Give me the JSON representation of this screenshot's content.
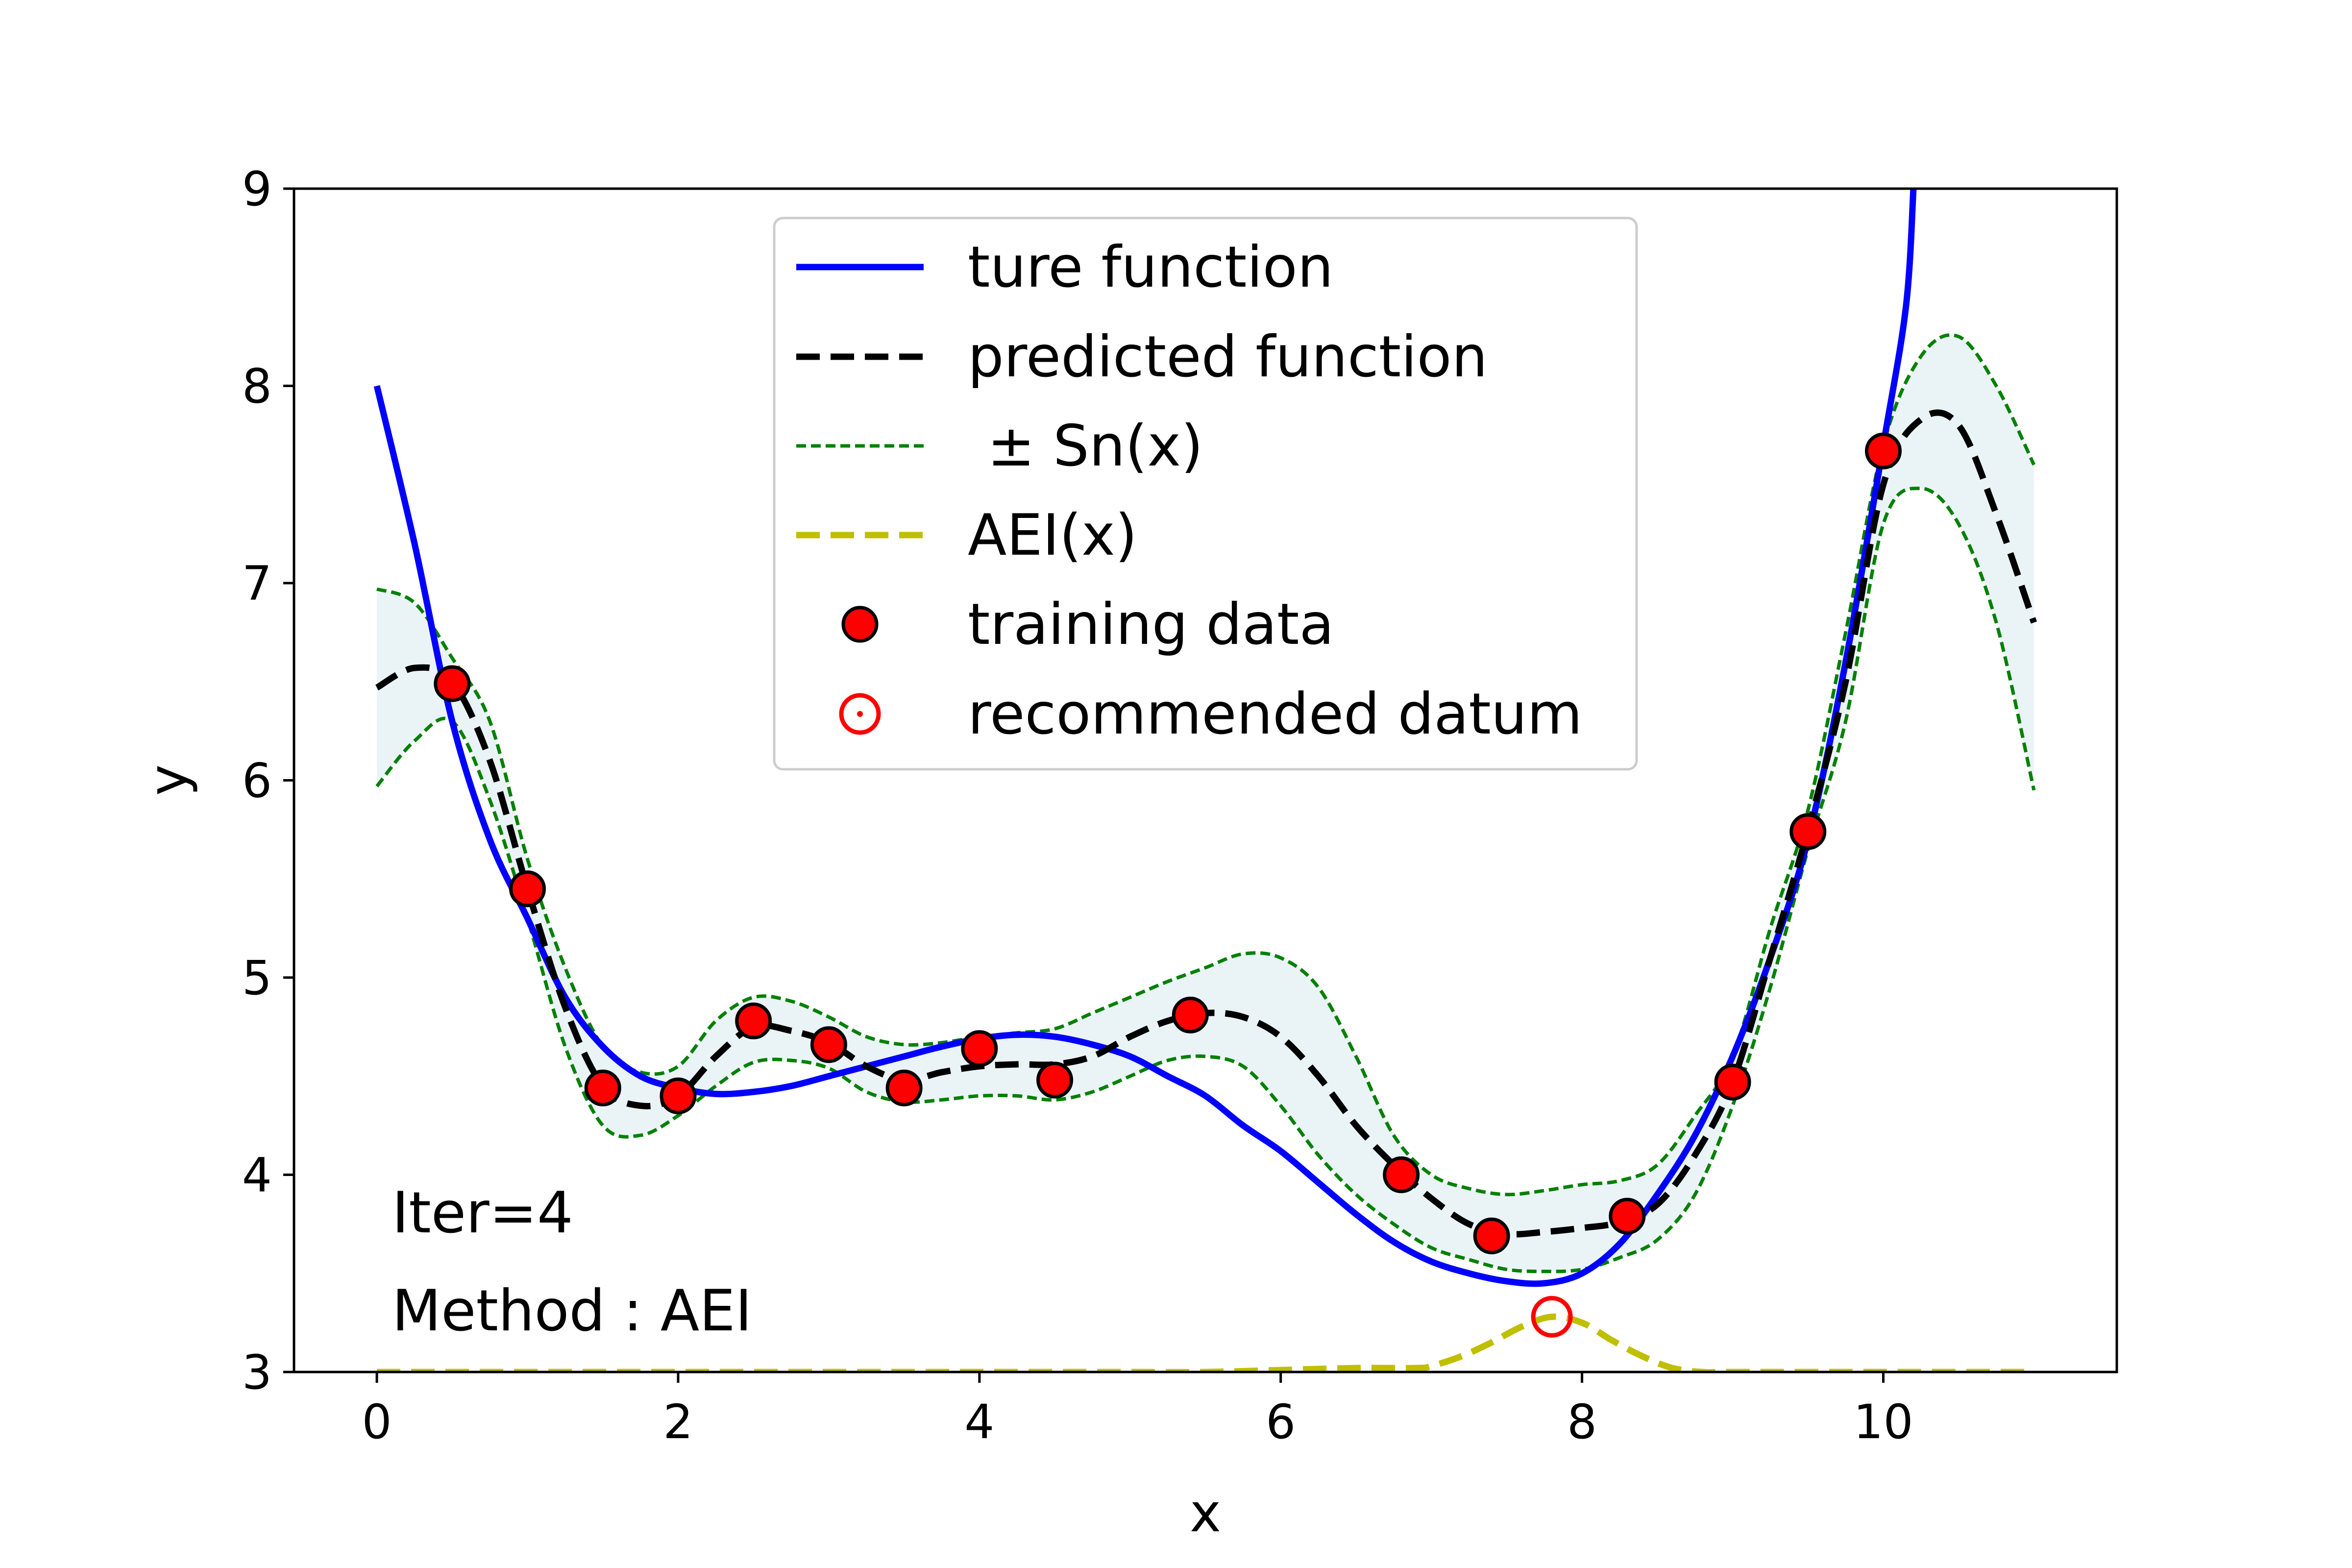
{
  "chart_data": {
    "type": "line",
    "xlabel": "x",
    "ylabel": "y",
    "xlim": [
      -0.55,
      11.55
    ],
    "ylim": [
      3,
      9
    ],
    "xticks": [
      0,
      2,
      4,
      6,
      8,
      10
    ],
    "yticks": [
      3,
      4,
      5,
      6,
      7,
      8,
      9
    ],
    "legend_position": "top-center",
    "annotations": [
      "Iter=4",
      "Method : AEI"
    ],
    "colors": {
      "true_function": "#0000ff",
      "predicted": "#000000",
      "band_line": "#008000",
      "band_fill": "#eaf4f7",
      "aei": "#bfbf00",
      "training_face": "#ff0000",
      "recommended_edge": "#ff0000"
    },
    "series": [
      {
        "name": "ture function",
        "style": "solid",
        "x": [
          0,
          0.25,
          0.5,
          0.75,
          1.0,
          1.25,
          1.5,
          1.75,
          2.0,
          2.25,
          2.5,
          2.75,
          3.0,
          3.25,
          3.5,
          3.75,
          4.0,
          4.25,
          4.5,
          4.75,
          5.0,
          5.25,
          5.5,
          5.75,
          6.0,
          6.25,
          6.5,
          6.75,
          7.0,
          7.25,
          7.5,
          7.75,
          8.0,
          8.25,
          8.5,
          8.75,
          9.0,
          9.25,
          9.5,
          9.75,
          10.0,
          10.15,
          10.2
        ],
        "y": [
          8.0,
          7.2,
          6.3,
          5.7,
          5.3,
          4.9,
          4.65,
          4.5,
          4.44,
          4.41,
          4.42,
          4.45,
          4.5,
          4.55,
          4.6,
          4.65,
          4.69,
          4.71,
          4.7,
          4.66,
          4.6,
          4.5,
          4.4,
          4.25,
          4.12,
          3.96,
          3.8,
          3.66,
          3.56,
          3.5,
          3.46,
          3.45,
          3.5,
          3.65,
          3.9,
          4.2,
          4.6,
          5.1,
          5.7,
          6.6,
          7.7,
          8.4,
          9.0
        ]
      },
      {
        "name": "predicted function",
        "style": "dashed",
        "x": [
          0,
          0.25,
          0.5,
          0.75,
          1.0,
          1.25,
          1.5,
          1.75,
          2.0,
          2.25,
          2.5,
          2.75,
          3.0,
          3.25,
          3.5,
          3.75,
          4.0,
          4.25,
          4.5,
          4.75,
          5.0,
          5.25,
          5.5,
          5.75,
          6.0,
          6.25,
          6.5,
          6.75,
          7.0,
          7.25,
          7.5,
          7.75,
          8.0,
          8.25,
          8.5,
          8.75,
          9.0,
          9.25,
          9.5,
          9.75,
          10.0,
          10.25,
          10.5,
          10.75,
          11.0
        ],
        "y": [
          6.47,
          6.57,
          6.5,
          6.1,
          5.45,
          4.85,
          4.45,
          4.35,
          4.4,
          4.6,
          4.75,
          4.73,
          4.67,
          4.55,
          4.48,
          4.52,
          4.55,
          4.56,
          4.56,
          4.6,
          4.7,
          4.78,
          4.82,
          4.8,
          4.7,
          4.5,
          4.25,
          4.05,
          3.88,
          3.75,
          3.7,
          3.71,
          3.73,
          3.76,
          3.85,
          4.1,
          4.47,
          5.1,
          5.75,
          6.5,
          7.5,
          7.83,
          7.8,
          7.35,
          6.8
        ]
      },
      {
        "name": "± Sn(x)",
        "style": "dotted-band",
        "x": [
          0,
          0.25,
          0.5,
          0.75,
          1.0,
          1.25,
          1.5,
          1.75,
          2.0,
          2.25,
          2.5,
          2.75,
          3.0,
          3.25,
          3.5,
          3.75,
          4.0,
          4.25,
          4.5,
          4.75,
          5.0,
          5.25,
          5.5,
          5.75,
          6.0,
          6.25,
          6.5,
          6.75,
          7.0,
          7.25,
          7.5,
          7.75,
          8.0,
          8.25,
          8.5,
          8.75,
          9.0,
          9.25,
          9.5,
          9.75,
          10.0,
          10.25,
          10.5,
          10.75,
          11.0
        ],
        "upper": [
          6.97,
          6.9,
          6.62,
          6.3,
          5.6,
          5.05,
          4.65,
          4.52,
          4.55,
          4.78,
          4.9,
          4.88,
          4.8,
          4.7,
          4.66,
          4.67,
          4.7,
          4.72,
          4.74,
          4.82,
          4.9,
          4.98,
          5.05,
          5.12,
          5.1,
          4.95,
          4.6,
          4.2,
          4.0,
          3.93,
          3.9,
          3.92,
          3.95,
          3.97,
          4.05,
          4.3,
          4.6,
          5.25,
          5.85,
          6.75,
          7.7,
          8.15,
          8.25,
          8.0,
          7.6
        ],
        "lower": [
          5.97,
          6.2,
          6.3,
          5.9,
          5.3,
          4.65,
          4.25,
          4.2,
          4.3,
          4.45,
          4.57,
          4.58,
          4.54,
          4.42,
          4.37,
          4.38,
          4.4,
          4.4,
          4.38,
          4.42,
          4.5,
          4.58,
          4.6,
          4.55,
          4.35,
          4.1,
          3.9,
          3.75,
          3.63,
          3.57,
          3.52,
          3.51,
          3.52,
          3.58,
          3.67,
          3.9,
          4.35,
          4.95,
          5.65,
          6.3,
          7.3,
          7.48,
          7.3,
          6.8,
          5.95
        ]
      },
      {
        "name": "AEI(x)",
        "style": "dashed",
        "x": [
          0,
          1,
          2,
          3,
          4,
          5,
          5.5,
          6,
          6.5,
          6.9,
          7.0,
          7.2,
          7.4,
          7.6,
          7.8,
          8.0,
          8.2,
          8.4,
          8.6,
          8.8,
          9.0,
          10,
          11
        ],
        "y": [
          3.0,
          3.0,
          3.0,
          3.0,
          3.0,
          3.0,
          3.0,
          3.01,
          3.02,
          3.02,
          3.03,
          3.08,
          3.15,
          3.23,
          3.28,
          3.25,
          3.16,
          3.08,
          3.02,
          3.0,
          3.0,
          3.0,
          3.0
        ]
      },
      {
        "name": "training data",
        "style": "markers",
        "x": [
          0.5,
          1.0,
          1.5,
          2.0,
          2.5,
          3.0,
          3.5,
          4.0,
          4.5,
          5.4,
          6.8,
          7.4,
          8.3,
          9.0,
          9.5,
          10.0
        ],
        "y": [
          6.49,
          5.45,
          4.44,
          4.4,
          4.78,
          4.66,
          4.44,
          4.64,
          4.48,
          4.81,
          4.0,
          3.69,
          3.79,
          4.47,
          5.74,
          7.67
        ]
      },
      {
        "name": "recommended datum",
        "style": "open-marker",
        "x": [
          7.8
        ],
        "y": [
          3.28
        ]
      }
    ]
  }
}
